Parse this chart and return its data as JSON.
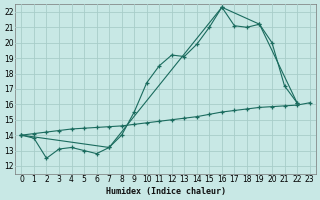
{
  "xlabel": "Humidex (Indice chaleur)",
  "bg_color": "#c8e8e5",
  "grid_color": "#a8cdc9",
  "line_color": "#1a6b5e",
  "xlim": [
    -0.5,
    23.5
  ],
  "ylim": [
    11.5,
    22.5
  ],
  "yticks": [
    12,
    13,
    14,
    15,
    16,
    17,
    18,
    19,
    20,
    21,
    22
  ],
  "xticks": [
    0,
    1,
    2,
    3,
    4,
    5,
    6,
    7,
    8,
    9,
    10,
    11,
    12,
    13,
    14,
    15,
    16,
    17,
    18,
    19,
    20,
    21,
    22,
    23
  ],
  "line1_x": [
    0,
    1,
    2,
    3,
    4,
    5,
    6,
    7,
    8,
    9,
    10,
    11,
    12,
    13,
    14,
    15,
    16,
    17,
    18,
    19,
    20,
    21,
    22
  ],
  "line1_y": [
    14.0,
    13.8,
    12.5,
    13.1,
    13.2,
    13.0,
    12.8,
    13.2,
    14.0,
    15.5,
    17.4,
    18.5,
    19.2,
    19.1,
    19.9,
    21.0,
    22.3,
    21.1,
    21.0,
    21.2,
    20.0,
    17.2,
    16.1
  ],
  "line2_x": [
    0,
    1,
    2,
    3,
    4,
    5,
    6,
    7,
    8,
    9,
    10,
    11,
    12,
    13,
    14,
    15,
    16,
    17,
    18,
    19,
    20,
    21,
    22,
    23
  ],
  "line2_y": [
    14.0,
    14.1,
    14.2,
    14.3,
    14.4,
    14.45,
    14.5,
    14.55,
    14.6,
    14.7,
    14.8,
    14.9,
    15.0,
    15.1,
    15.2,
    15.35,
    15.5,
    15.6,
    15.7,
    15.8,
    15.85,
    15.9,
    15.95,
    16.1
  ],
  "line3_x": [
    0,
    7,
    16,
    19,
    22
  ],
  "line3_y": [
    14.0,
    13.2,
    22.3,
    21.2,
    16.1
  ]
}
